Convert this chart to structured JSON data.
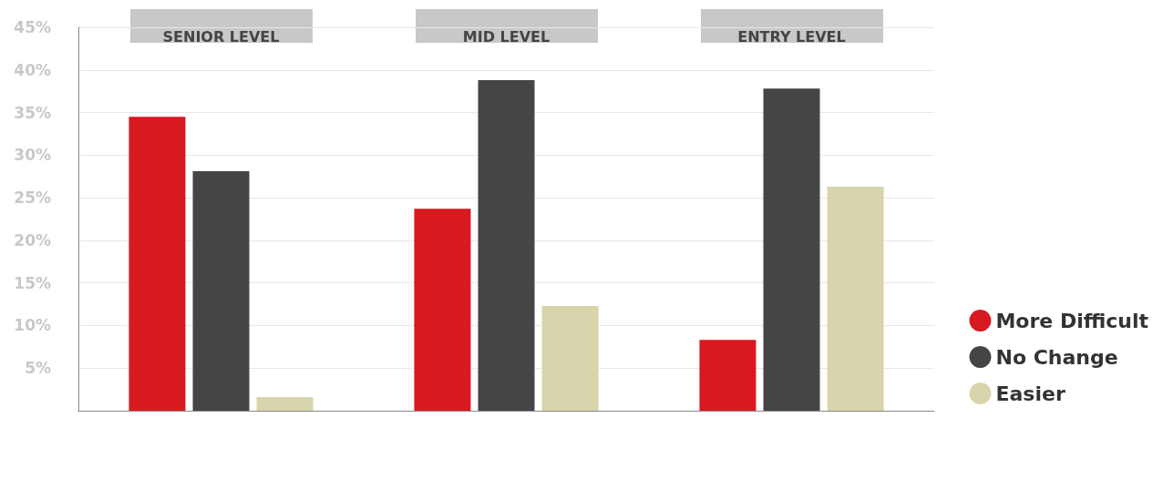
{
  "chart_data": {
    "type": "bar",
    "categories": [
      "SENIOR LEVEL",
      "MID LEVEL",
      "ENTRY LEVEL"
    ],
    "series": [
      {
        "name": "More Difficult",
        "color": "#d71920",
        "values": [
          34.5,
          23.7,
          8.3
        ]
      },
      {
        "name": "No Change",
        "color": "#454547",
        "values": [
          28.1,
          38.8,
          37.8
        ]
      },
      {
        "name": "Easier",
        "color": "#d8d5ad",
        "values": [
          1.6,
          12.3,
          26.3
        ]
      }
    ],
    "ylim": [
      0,
      45
    ],
    "yticks": [
      {
        "value": 0,
        "label": null
      },
      {
        "value": 5,
        "label": "5%"
      },
      {
        "value": 10,
        "label": "10%"
      },
      {
        "value": 15,
        "label": "15%"
      },
      {
        "value": 20,
        "label": "20%"
      },
      {
        "value": 25,
        "label": "25%"
      },
      {
        "value": 30,
        "label": "30%"
      },
      {
        "value": 35,
        "label": "35%"
      },
      {
        "value": 40,
        "label": "40%"
      },
      {
        "value": 45,
        "label": "45%"
      }
    ],
    "grid": "y",
    "legend": "right"
  }
}
